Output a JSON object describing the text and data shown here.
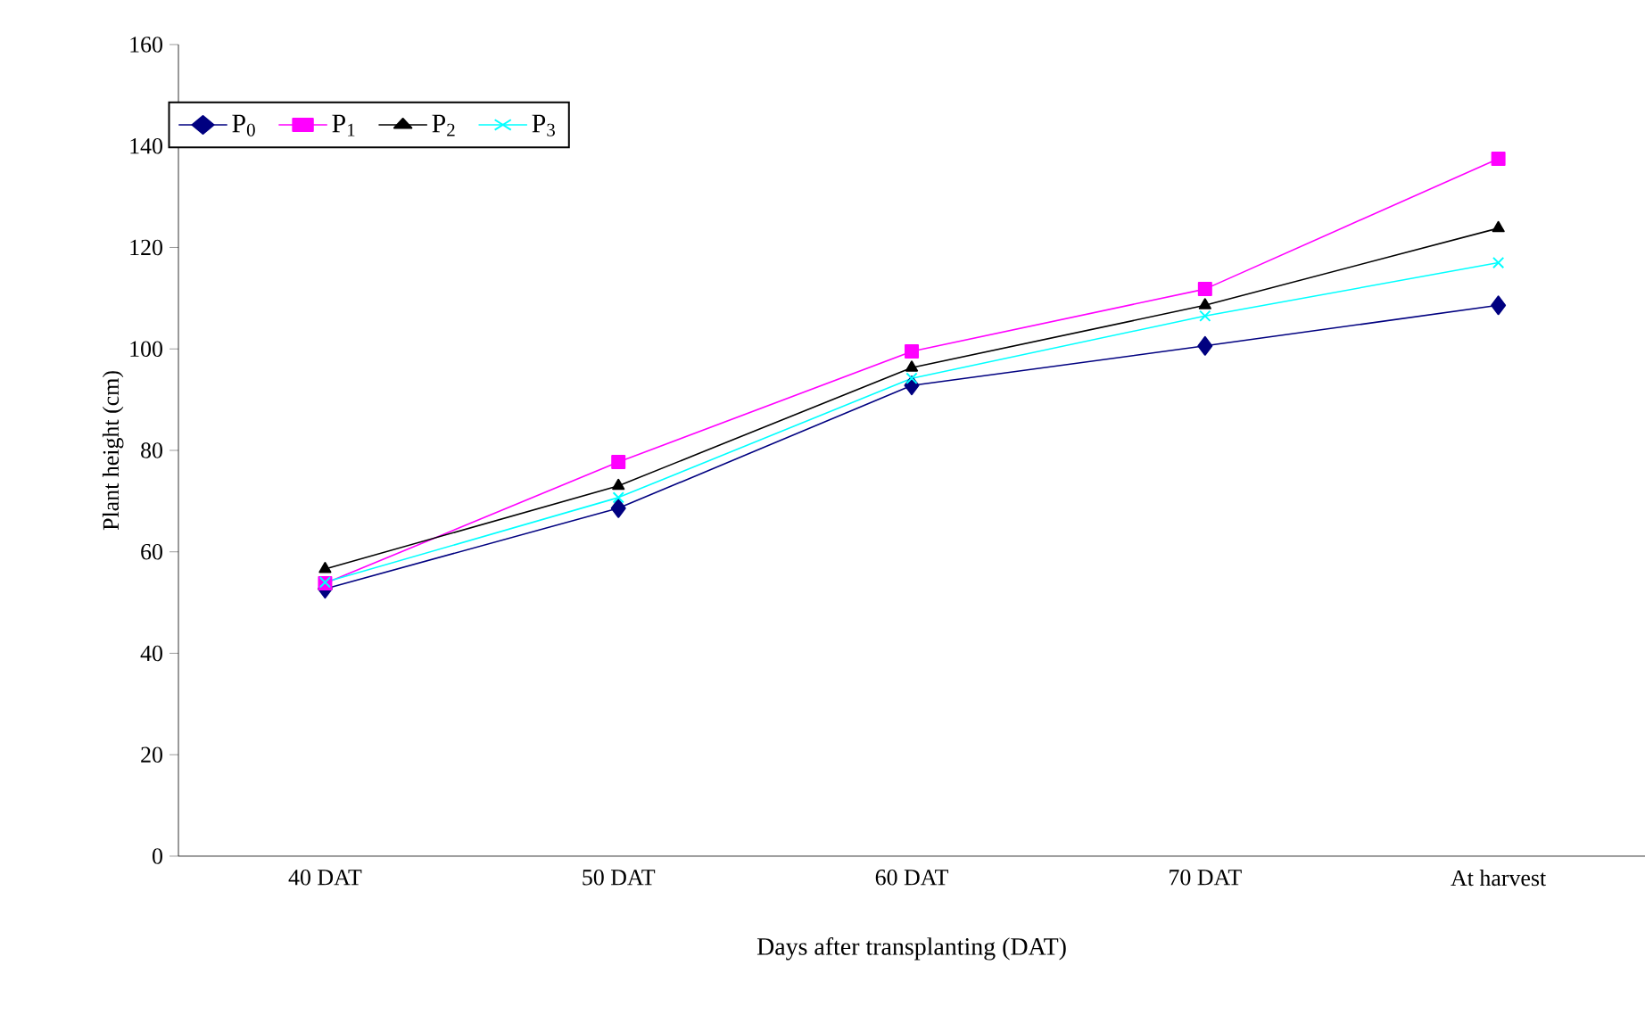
{
  "chart_data": {
    "type": "line",
    "xlabel": "Days after transplanting (DAT)",
    "ylabel": "Plant height (cm)",
    "categories": [
      "40 DAT",
      "50 DAT",
      "60 DAT",
      "70 DAT",
      "At harvest"
    ],
    "series": [
      {
        "name": "P$_{0}$",
        "color": "#000080",
        "marker": "diamond",
        "values": [
          52.7,
          68.6,
          92.8,
          100.6,
          108.6
        ]
      },
      {
        "name": "P$_{1}$",
        "color": "#ff00ff",
        "marker": "square",
        "values": [
          53.8,
          77.7,
          99.5,
          111.8,
          137.5
        ]
      },
      {
        "name": "P$_{2}$",
        "color": "#000000",
        "marker": "triangle",
        "values": [
          56.6,
          73,
          96.3,
          108.6,
          123.8
        ]
      },
      {
        "name": "P$_{3}$",
        "color": "#00ffff",
        "marker": "cross",
        "values": [
          54,
          70.7,
          94.2,
          106.5,
          117
        ]
      }
    ],
    "ylim": [
      0,
      160
    ],
    "yticks": [
      0,
      20,
      40,
      60,
      80,
      100,
      120,
      140,
      160
    ],
    "grid": false,
    "legend": "top left",
    "line_style": "solid"
  }
}
